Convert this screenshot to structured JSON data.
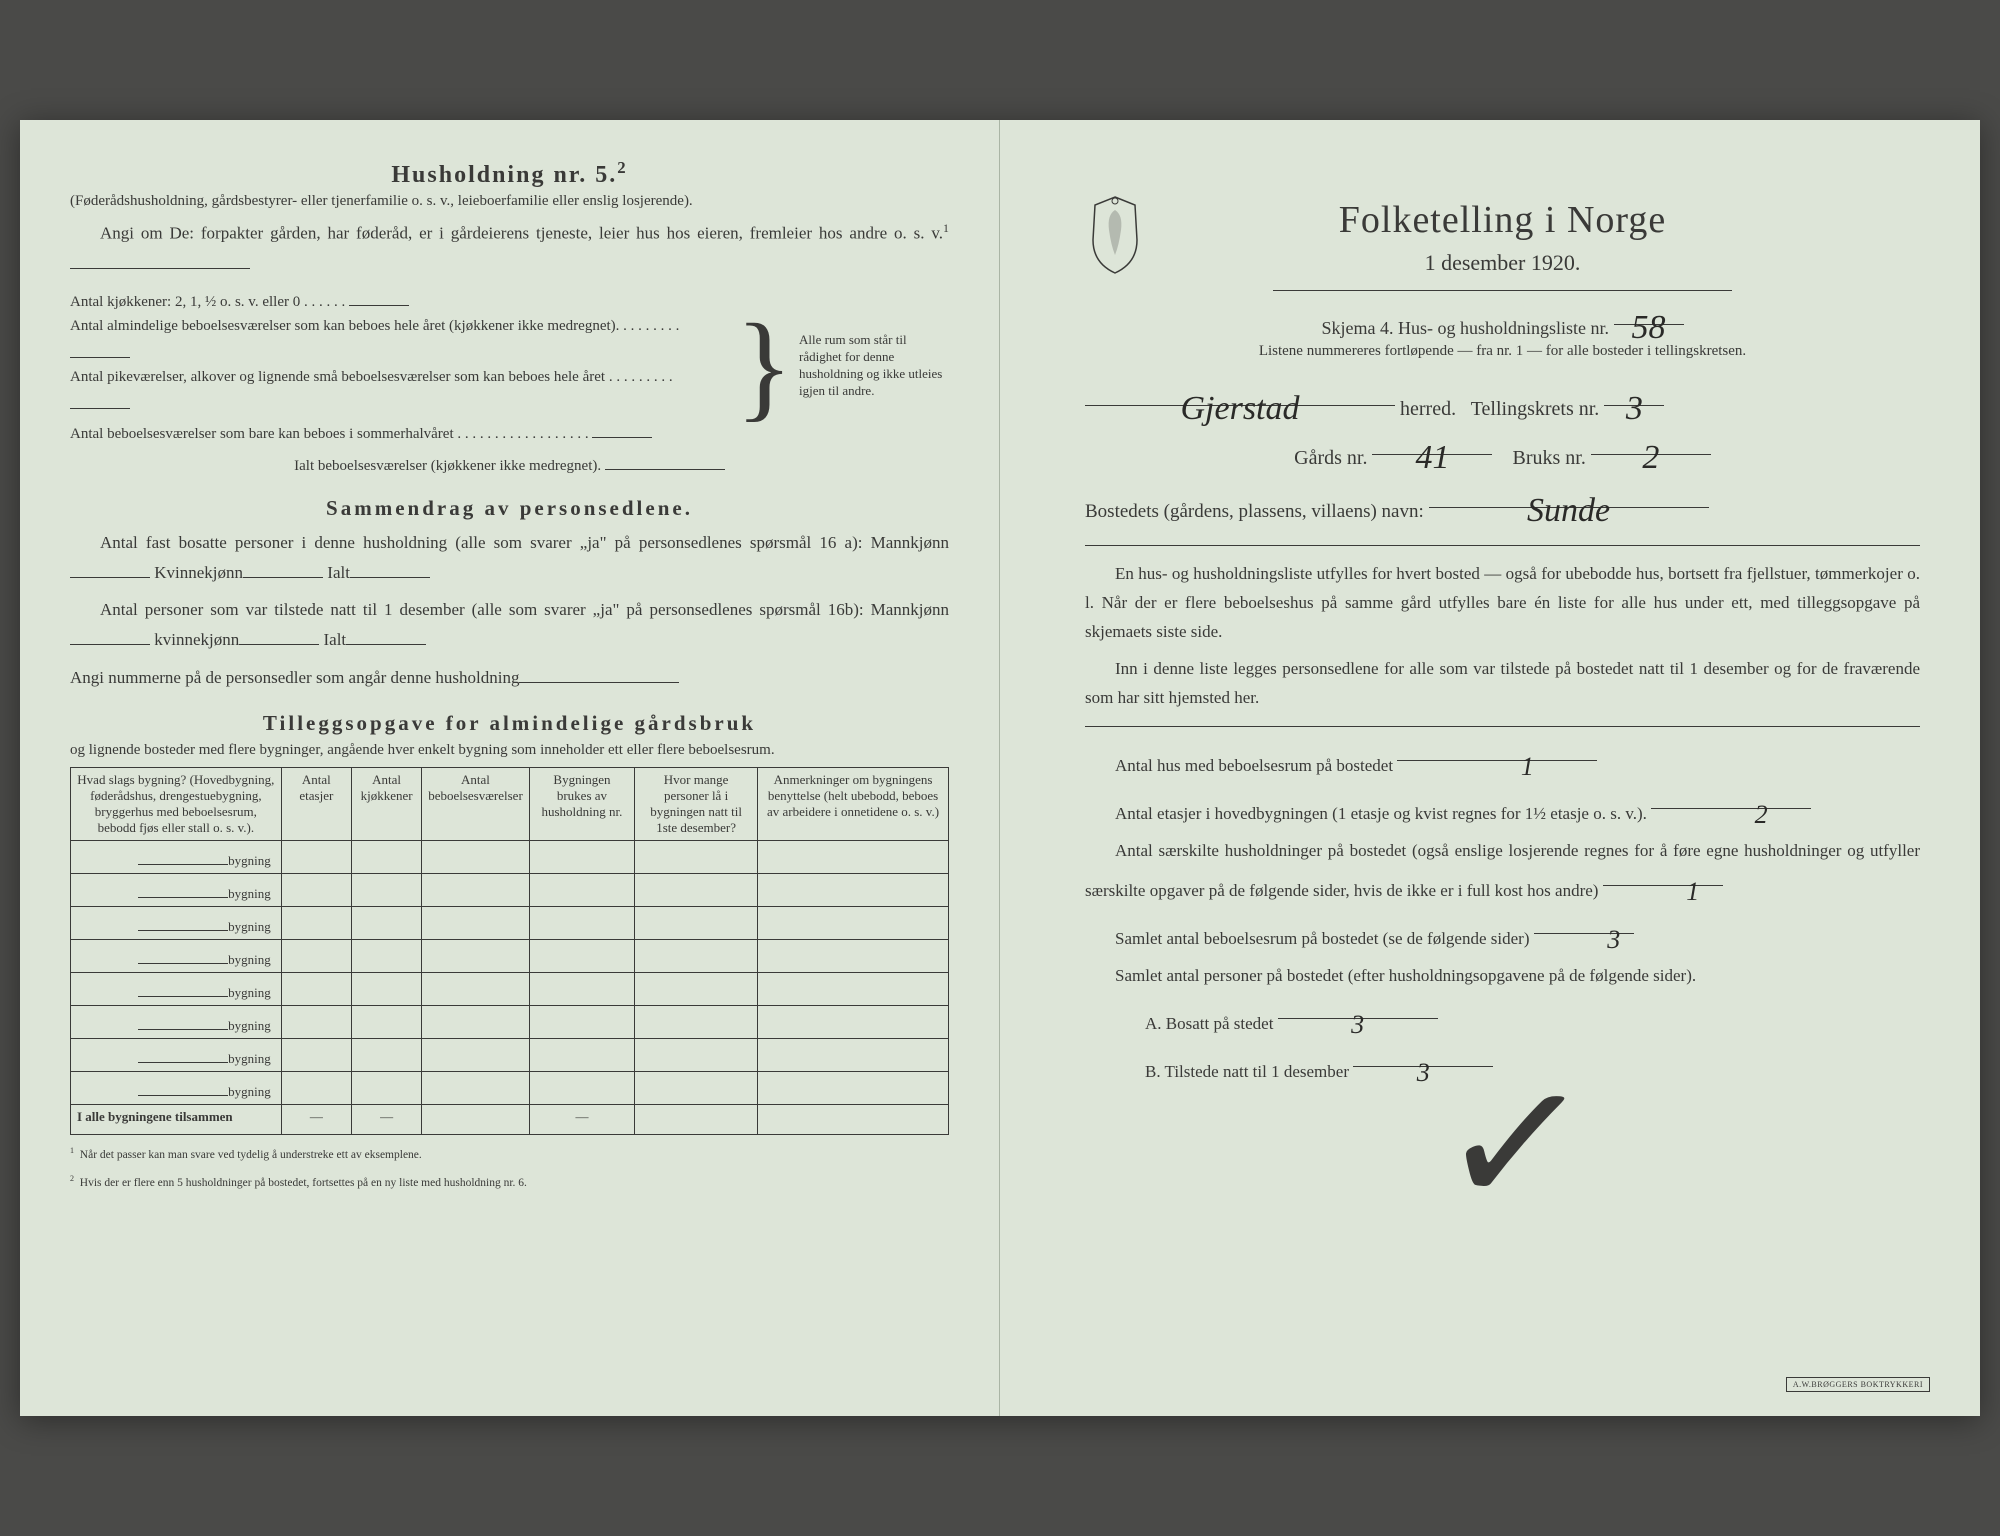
{
  "left": {
    "title": "Husholdning nr. 5.",
    "title_sup": "2",
    "subtitle": "(Føderådshusholdning, gårdsbestyrer- eller tjenerfamilie o. s. v., leieboerfamilie eller enslig losjerende).",
    "angi": "Angi om De: forpakter gården, har føderåd, er i gårdeierens tjeneste, leier hus hos eieren, fremleier hos andre o. s. v.",
    "angi_sup": "1",
    "kitchens": "Antal kjøkkener: 2, 1, ½ o. s. v. eller 0",
    "room1": "Antal almindelige beboelsesværelser som kan beboes hele året (kjøkkener ikke medregnet).",
    "room2": "Antal pikeværelser, alkover og lignende små beboelsesværelser som kan beboes hele året",
    "room3": "Antal beboelsesværelser som bare kan beboes i sommerhalvåret",
    "ialt": "Ialt beboelsesværelser (kjøkkener ikke medregnet).",
    "brace_text": "Alle rum som står til rådighet for denne husholdning og ikke utleies igjen til andre.",
    "sammendrag_title": "Sammendrag av personsedlene.",
    "samm_1": "Antal fast bosatte personer i denne husholdning (alle som svarer „ja\" på personsedlenes spørsmål 16 a): Mannkjønn",
    "samm_kvin": "Kvinnekjønn",
    "samm_ialt": "Ialt",
    "samm_2": "Antal personer som var tilstede natt til 1 desember (alle som svarer „ja\" på personsedlenes spørsmål 16b): Mannkjønn",
    "samm_kvin2": "kvinnekjønn",
    "samm_3": "Angi nummerne på de personsedler som angår denne husholdning",
    "tillegg_title": "Tilleggsopgave for almindelige gårdsbruk",
    "tillegg_sub": "og lignende bosteder med flere bygninger, angående hver enkelt bygning som inneholder ett eller flere beboelsesrum.",
    "table": {
      "headers": [
        "Hvad slags bygning? (Hovedbygning, føderådshus, drengestuebygning, bryggerhus med beboelsesrum, bebodd fjøs eller stall o. s. v.).",
        "Antal etasjer",
        "Antal kjøkkener",
        "Antal beboelsesværelser",
        "Bygningen brukes av husholdning nr.",
        "Hvor mange personer lå i bygningen natt til 1ste desember?",
        "Anmerkninger om bygningens benyttelse (helt ubebodd, beboes av arbeidere i onnetidene o. s. v.)"
      ],
      "row_label": "bygning",
      "row_count": 8,
      "footer_label": "I alle bygningene tilsammen"
    },
    "footnote1": "Når det passer kan man svare ved tydelig å understreke ett av eksemplene.",
    "footnote2": "Hvis der er flere enn 5 husholdninger på bostedet, fortsettes på en ny liste med husholdning nr. 6."
  },
  "right": {
    "main_title": "Folketelling i Norge",
    "date": "1 desember 1920.",
    "skjema_line": "Skjema 4. Hus- og husholdningsliste nr.",
    "skjema_nr": "58",
    "listene": "Listene nummereres fortløpende — fra nr. 1 — for alle bosteder i tellingskretsen.",
    "herred_value": "Gjerstad",
    "herred_label": "herred.",
    "krets_label": "Tellingskrets nr.",
    "krets_value": "3",
    "gards_label": "Gårds nr.",
    "gards_value": "41",
    "bruks_label": "Bruks nr.",
    "bruks_value": "2",
    "bosted_label": "Bostedets (gårdens, plassens, villaens) navn:",
    "bosted_value": "Sunde",
    "para1": "En hus- og husholdningsliste utfylles for hvert bosted — også for ubebodde hus, bortsett fra fjellstuer, tømmerkojer o. l. Når der er flere beboelseshus på samme gård utfylles bare én liste for alle hus under ett, med tilleggsopgave på skjemaets siste side.",
    "para2": "Inn i denne liste legges personsedlene for alle som var tilstede på bostedet natt til 1 desember og for de fraværende som har sitt hjemsted her.",
    "q1_label": "Antal hus med beboelsesrum på bostedet",
    "q1_value": "1",
    "q2_label_a": "Antal etasjer i hovedbygningen (1 etasje og kvist regnes for 1½ etasje o. s. v.).",
    "q2_value": "2",
    "q3_label": "Antal særskilte husholdninger på bostedet (også enslige losjerende regnes for å føre egne husholdninger og utfyller særskilte opgaver på de følgende sider, hvis de ikke er i full kost hos andre)",
    "q3_value": "1",
    "q4_label": "Samlet antal beboelsesrum på bostedet (se de følgende sider)",
    "q4_value": "3",
    "q5_label": "Samlet antal personer på bostedet (efter husholdningsopgavene på de følgende sider).",
    "qA_label": "A. Bosatt på stedet",
    "qA_value": "3",
    "qB_label": "B. Tilstede natt til 1 desember",
    "qB_value": "3",
    "stamp": "A.W.BRØGGERS BOKTRYKKERI"
  },
  "colors": {
    "paper": "#dde5d8",
    "ink": "#3a3a38",
    "background": "#4a4a48"
  }
}
